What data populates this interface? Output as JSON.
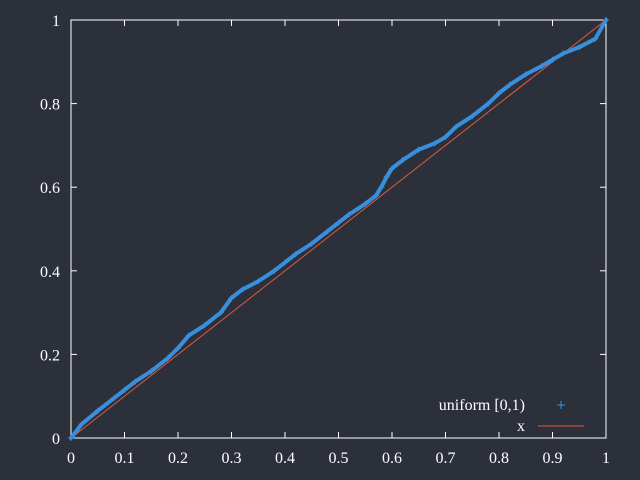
{
  "background_color": "#2b303b",
  "axis_color": "#ffffff",
  "chart_data": {
    "type": "scatter",
    "title": "",
    "xlabel": "",
    "ylabel": "",
    "xlim": [
      0,
      1
    ],
    "ylim": [
      0,
      1
    ],
    "grid": false,
    "legend_position": "bottom-right",
    "xticks": [
      "0",
      "0.1",
      "0.2",
      "0.3",
      "0.4",
      "0.5",
      "0.6",
      "0.7",
      "0.8",
      "0.9",
      "1"
    ],
    "yticks": [
      "0",
      "0.2",
      "0.4",
      "0.6",
      "0.8",
      "1"
    ],
    "series": [
      {
        "name": "uniform [0,1)",
        "kind": "points",
        "marker": "plus",
        "color": "#3a8fdd",
        "x": [
          0,
          0.02,
          0.05,
          0.08,
          0.1,
          0.12,
          0.15,
          0.18,
          0.2,
          0.22,
          0.25,
          0.28,
          0.3,
          0.32,
          0.35,
          0.38,
          0.4,
          0.42,
          0.45,
          0.48,
          0.5,
          0.52,
          0.55,
          0.57,
          0.58,
          0.59,
          0.6,
          0.62,
          0.65,
          0.68,
          0.7,
          0.72,
          0.75,
          0.78,
          0.8,
          0.82,
          0.85,
          0.88,
          0.9,
          0.92,
          0.95,
          0.98,
          1.0
        ],
        "y": [
          0,
          0.033,
          0.065,
          0.095,
          0.115,
          0.135,
          0.16,
          0.19,
          0.215,
          0.245,
          0.27,
          0.3,
          0.335,
          0.355,
          0.375,
          0.4,
          0.42,
          0.44,
          0.465,
          0.495,
          0.515,
          0.535,
          0.56,
          0.58,
          0.6,
          0.625,
          0.645,
          0.665,
          0.69,
          0.705,
          0.72,
          0.745,
          0.77,
          0.8,
          0.825,
          0.845,
          0.87,
          0.89,
          0.905,
          0.92,
          0.935,
          0.955,
          1.0
        ]
      },
      {
        "name": "x",
        "kind": "line",
        "color": "#e05a3e",
        "x": [
          0,
          1
        ],
        "y": [
          0,
          1
        ]
      }
    ]
  }
}
